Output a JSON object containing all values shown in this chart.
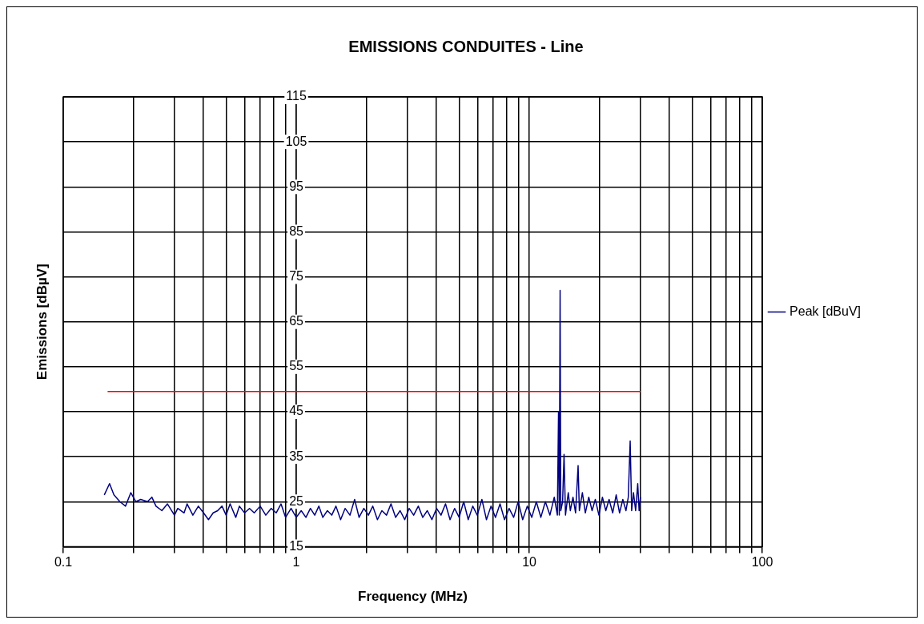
{
  "chart_data": {
    "type": "line",
    "title": "EMISSIONS CONDUITES - Line",
    "xlabel": "Frequency (MHz)",
    "ylabel": "Emissions [dBµV]",
    "log": "x",
    "xlim": [
      0.1,
      100
    ],
    "ylim": [
      15,
      115
    ],
    "xticks": [
      0.1,
      {
        "value": 0.2,
        "label": null
      },
      {
        "value": 0.3,
        "label": null
      },
      {
        "value": 0.4,
        "label": null
      },
      {
        "value": 0.5,
        "label": null
      },
      {
        "value": 0.6,
        "label": null
      },
      {
        "value": 0.7,
        "label": null
      },
      {
        "value": 0.8,
        "label": null
      },
      {
        "value": 0.9,
        "label": null
      },
      1,
      {
        "value": 2,
        "label": null
      },
      {
        "value": 3,
        "label": null
      },
      {
        "value": 4,
        "label": null
      },
      {
        "value": 5,
        "label": null
      },
      {
        "value": 6,
        "label": null
      },
      {
        "value": 7,
        "label": null
      },
      {
        "value": 8,
        "label": null
      },
      {
        "value": 9,
        "label": null
      },
      10,
      {
        "value": 20,
        "label": null
      },
      {
        "value": 30,
        "label": null
      },
      {
        "value": 40,
        "label": null
      },
      {
        "value": 50,
        "label": null
      },
      {
        "value": 60,
        "label": null
      },
      {
        "value": 70,
        "label": null
      },
      {
        "value": 80,
        "label": null
      },
      {
        "value": 90,
        "label": null
      },
      100
    ],
    "yticks": [
      15,
      25,
      35,
      45,
      55,
      65,
      75,
      85,
      95,
      105,
      115
    ],
    "grid": true,
    "legend": "right",
    "marker": "none",
    "line_style": "solid",
    "series": [
      {
        "name": "Peak [dBuV]",
        "color": "#000080",
        "x": [
          0.15,
          0.158,
          0.165,
          0.175,
          0.185,
          0.195,
          0.205,
          0.215,
          0.23,
          0.24,
          0.25,
          0.265,
          0.28,
          0.3,
          0.31,
          0.33,
          0.34,
          0.36,
          0.38,
          0.4,
          0.42,
          0.44,
          0.46,
          0.48,
          0.5,
          0.52,
          0.55,
          0.57,
          0.6,
          0.63,
          0.66,
          0.7,
          0.74,
          0.78,
          0.82,
          0.86,
          0.9,
          0.95,
          1.0,
          1.05,
          1.1,
          1.15,
          1.2,
          1.25,
          1.3,
          1.36,
          1.42,
          1.48,
          1.55,
          1.62,
          1.7,
          1.78,
          1.86,
          1.95,
          2.04,
          2.13,
          2.23,
          2.33,
          2.44,
          2.55,
          2.67,
          2.79,
          2.92,
          3.05,
          3.19,
          3.34,
          3.49,
          3.65,
          3.82,
          4.0,
          4.18,
          4.37,
          4.57,
          4.78,
          5.0,
          5.23,
          5.47,
          5.72,
          5.98,
          6.26,
          6.55,
          6.85,
          7.16,
          7.49,
          7.83,
          8.19,
          8.57,
          8.96,
          9.37,
          9.8,
          10.25,
          10.72,
          11.21,
          11.72,
          12.26,
          12.8,
          13.2,
          13.35,
          13.45,
          13.56,
          13.65,
          13.9,
          14.1,
          14.3,
          14.7,
          15.0,
          15.4,
          15.8,
          16.2,
          16.4,
          16.9,
          17.4,
          18,
          18.6,
          19.2,
          19.9,
          20.6,
          21.3,
          22,
          22.8,
          23.6,
          24.4,
          25.2,
          26,
          26.6,
          27.1,
          27.5,
          28,
          28.6,
          29.2,
          29.6,
          30
        ],
        "values": [
          26.5,
          29,
          26.5,
          25,
          24,
          27,
          25,
          25.5,
          25,
          26,
          24,
          23,
          24.5,
          22,
          23.5,
          22.5,
          24.5,
          22,
          24,
          22.5,
          21,
          22.5,
          23,
          24,
          22,
          24.5,
          21.5,
          24,
          22.5,
          23.5,
          22.5,
          24,
          22,
          23.5,
          22.5,
          24.5,
          21.5,
          23.5,
          21.5,
          23,
          21.5,
          23.5,
          22,
          24,
          21.5,
          23,
          22,
          24,
          21,
          23.5,
          22,
          25.5,
          21.5,
          23.5,
          22,
          24,
          21,
          23,
          22,
          24.5,
          21.5,
          23,
          21,
          23.5,
          22,
          24,
          21.5,
          23,
          21,
          23.5,
          22,
          24.5,
          21,
          23.5,
          21.5,
          25,
          21,
          24,
          22,
          25.5,
          21,
          24,
          21.5,
          24.5,
          21,
          23.5,
          21.5,
          25,
          21,
          24,
          21.5,
          25,
          21.5,
          25,
          22,
          26,
          22,
          45,
          22,
          72,
          23,
          25,
          35.5,
          22,
          27,
          23,
          26,
          22.5,
          33,
          23,
          27,
          22.5,
          26,
          23,
          25.5,
          22,
          26,
          23,
          25.5,
          22.5,
          26.5,
          22.5,
          25.5,
          23,
          26,
          38.5,
          23,
          27,
          23,
          29,
          23,
          26
        ]
      },
      {
        "color": "#ff0000",
        "x": [
          0.155,
          30
        ],
        "values": [
          49.5,
          49.5
        ]
      }
    ]
  }
}
